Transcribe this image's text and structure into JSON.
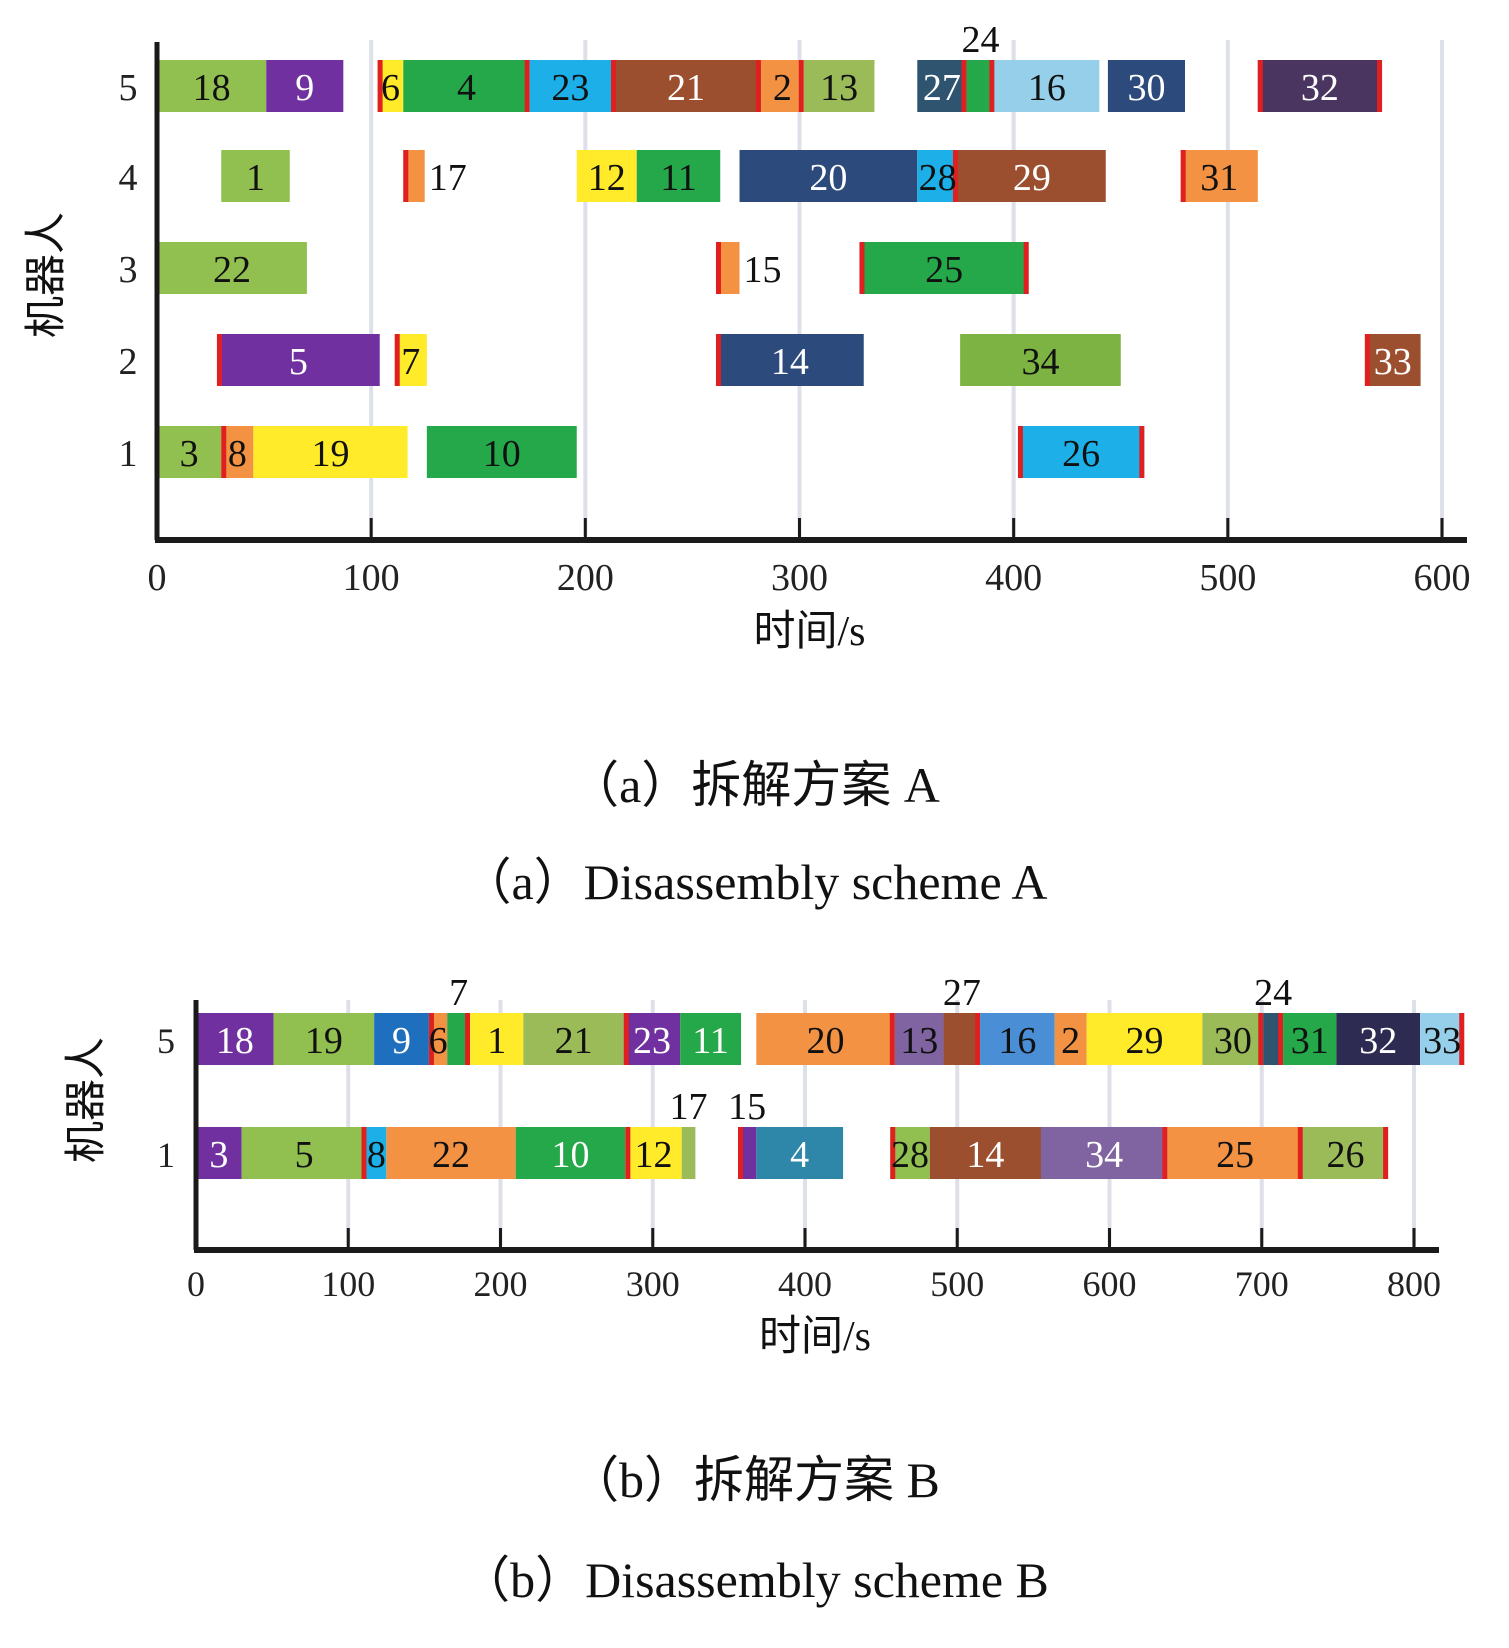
{
  "chart_data": [
    {
      "type": "gantt",
      "id": "a",
      "title_cn": "（a）拆解方案 A",
      "title_en": "（a）Disassembly scheme A",
      "xlabel": "时间/s",
      "ylabel": "机器人",
      "xlim": [
        0,
        600
      ],
      "xticks": [
        "0",
        "100",
        "200",
        "300",
        "400",
        "500",
        "600"
      ],
      "yticks": [
        "1",
        "2",
        "3",
        "4",
        "5"
      ],
      "grid": "vertical",
      "tasks": [
        {
          "robot": 5,
          "label": "18",
          "start": 0,
          "end": 51,
          "color": "#92c050",
          "text": "#111",
          "redL": false,
          "redR": false
        },
        {
          "robot": 5,
          "label": "9",
          "start": 51,
          "end": 87,
          "color": "#7030a0",
          "text": "#fff",
          "redL": false,
          "redR": false
        },
        {
          "robot": 5,
          "label": "6",
          "start": 103,
          "end": 115,
          "color": "#ffeb2a",
          "text": "#111",
          "redL": true,
          "redR": false
        },
        {
          "robot": 5,
          "label": "4",
          "start": 115,
          "end": 174,
          "color": "#25a84a",
          "text": "#111",
          "redL": false,
          "redR": true
        },
        {
          "robot": 5,
          "label": "23",
          "start": 174,
          "end": 212,
          "color": "#1db0e8",
          "text": "#111",
          "redL": false,
          "redR": false
        },
        {
          "robot": 5,
          "label": "21",
          "start": 212,
          "end": 282,
          "color": "#9c4f2e",
          "text": "#fff",
          "redL": true,
          "redR": true
        },
        {
          "robot": 5,
          "label": "2",
          "start": 282,
          "end": 302,
          "color": "#f49244",
          "text": "#111",
          "redL": false,
          "redR": true
        },
        {
          "robot": 5,
          "label": "13",
          "start": 302,
          "end": 335,
          "color": "#9bbb59",
          "text": "#111",
          "redL": false,
          "redR": false
        },
        {
          "robot": 5,
          "label": "27",
          "start": 355,
          "end": 378,
          "color": "#2f5470",
          "text": "#fff",
          "redL": false,
          "redR": true
        },
        {
          "robot": 5,
          "label": "24",
          "start": 378,
          "end": 391,
          "color": "#25a84a",
          "text": "#111",
          "redL": false,
          "redR": true,
          "labelAbove": true
        },
        {
          "robot": 5,
          "label": "16",
          "start": 391,
          "end": 440,
          "color": "#95cfea",
          "text": "#111",
          "redL": false,
          "redR": false
        },
        {
          "robot": 5,
          "label": "30",
          "start": 444,
          "end": 480,
          "color": "#2c4a7c",
          "text": "#fff",
          "redL": false,
          "redR": false
        },
        {
          "robot": 5,
          "label": "32",
          "start": 514,
          "end": 572,
          "color": "#4a3560",
          "text": "#fff",
          "redL": true,
          "redR": true
        },
        {
          "robot": 4,
          "label": "1",
          "start": 30,
          "end": 62,
          "color": "#92c050",
          "text": "#111",
          "redL": false,
          "redR": false
        },
        {
          "robot": 4,
          "label": "17",
          "start": 115,
          "end": 125,
          "color": "#f49244",
          "text": "#111",
          "redL": true,
          "redR": false,
          "labelRight": true
        },
        {
          "robot": 4,
          "label": "12",
          "start": 196,
          "end": 224,
          "color": "#ffeb2a",
          "text": "#111",
          "redL": false,
          "redR": false
        },
        {
          "robot": 4,
          "label": "11",
          "start": 224,
          "end": 263,
          "color": "#25a84a",
          "text": "#111",
          "redL": false,
          "redR": false
        },
        {
          "robot": 4,
          "label": "20",
          "start": 272,
          "end": 355,
          "color": "#2c4a7c",
          "text": "#fff",
          "redL": false,
          "redR": false
        },
        {
          "robot": 4,
          "label": "28",
          "start": 355,
          "end": 374,
          "color": "#1db0e8",
          "text": "#111",
          "redL": false,
          "redR": true
        },
        {
          "robot": 4,
          "label": "29",
          "start": 374,
          "end": 443,
          "color": "#9c4f2e",
          "text": "#fff",
          "redL": false,
          "redR": false
        },
        {
          "robot": 4,
          "label": "31",
          "start": 478,
          "end": 514,
          "color": "#f49244",
          "text": "#111",
          "redL": true,
          "redR": false
        },
        {
          "robot": 3,
          "label": "22",
          "start": 0,
          "end": 70,
          "color": "#92c050",
          "text": "#111",
          "redL": false,
          "redR": false
        },
        {
          "robot": 3,
          "label": "15",
          "start": 261,
          "end": 272,
          "color": "#f49244",
          "text": "#111",
          "redL": true,
          "redR": false,
          "labelRight": true
        },
        {
          "robot": 3,
          "label": "25",
          "start": 328,
          "end": 407,
          "color": "#25a84a",
          "text": "#111",
          "redL": true,
          "redR": true
        },
        {
          "robot": 2,
          "label": "5",
          "start": 28,
          "end": 104,
          "color": "#7030a0",
          "text": "#fff",
          "redL": true,
          "redR": false
        },
        {
          "robot": 2,
          "label": "7",
          "start": 111,
          "end": 126,
          "color": "#ffeb2a",
          "text": "#111",
          "redL": true,
          "redR": false
        },
        {
          "robot": 2,
          "label": "14",
          "start": 261,
          "end": 330,
          "color": "#2c4a7c",
          "text": "#fff",
          "redL": true,
          "redR": false
        },
        {
          "robot": 2,
          "label": "34",
          "start": 375,
          "end": 450,
          "color": "#7cb342",
          "text": "#111",
          "redL": false,
          "redR": false
        },
        {
          "robot": 2,
          "label": "33",
          "start": 564,
          "end": 590,
          "color": "#9c4f2e",
          "text": "#fff",
          "redL": true,
          "redR": false
        },
        {
          "robot": 1,
          "label": "3",
          "start": 0,
          "end": 30,
          "color": "#92c050",
          "text": "#111",
          "redL": false,
          "redR": false
        },
        {
          "robot": 1,
          "label": "8",
          "start": 30,
          "end": 45,
          "color": "#f49244",
          "text": "#111",
          "redL": true,
          "redR": false
        },
        {
          "robot": 1,
          "label": "19",
          "start": 45,
          "end": 117,
          "color": "#ffeb2a",
          "text": "#111",
          "redL": false,
          "redR": false
        },
        {
          "robot": 1,
          "label": "10",
          "start": 126,
          "end": 196,
          "color": "#25a84a",
          "text": "#111",
          "redL": false,
          "redR": false
        },
        {
          "robot": 1,
          "label": "26",
          "start": 402,
          "end": 461,
          "color": "#1db0e8",
          "text": "#111",
          "redL": true,
          "redR": true
        }
      ]
    },
    {
      "type": "gantt",
      "id": "b",
      "title_cn": "（b）拆解方案 B",
      "title_en": "（b）Disassembly scheme B",
      "xlabel": "时间/s",
      "ylabel": "机器人",
      "xlim": [
        0,
        800
      ],
      "xticks": [
        "0",
        "100",
        "200",
        "300",
        "400",
        "500",
        "600",
        "700",
        "800"
      ],
      "yticks": [
        "1",
        "5"
      ],
      "grid": "vertical",
      "tasks": [
        {
          "robot": 5,
          "label": "18",
          "start": 0,
          "end": 51,
          "color": "#7030a0",
          "text": "#fff",
          "redL": false,
          "redR": false
        },
        {
          "robot": 5,
          "label": "19",
          "start": 51,
          "end": 117,
          "color": "#92c050",
          "text": "#111",
          "redL": false,
          "redR": false
        },
        {
          "robot": 5,
          "label": "9",
          "start": 117,
          "end": 153,
          "color": "#1f6fbf",
          "text": "#fff",
          "redL": false,
          "redR": false
        },
        {
          "robot": 5,
          "label": "6",
          "start": 153,
          "end": 165,
          "color": "#f49244",
          "text": "#111",
          "redL": true,
          "redR": false
        },
        {
          "robot": 5,
          "label": "7",
          "start": 165,
          "end": 180,
          "color": "#25a84a",
          "text": "#111",
          "redL": false,
          "redR": true,
          "labelAbove": true
        },
        {
          "robot": 5,
          "label": "1",
          "start": 180,
          "end": 215,
          "color": "#ffeb2a",
          "text": "#111",
          "redL": false,
          "redR": false
        },
        {
          "robot": 5,
          "label": "21",
          "start": 215,
          "end": 281,
          "color": "#9bbb59",
          "text": "#111",
          "redL": false,
          "redR": false
        },
        {
          "robot": 5,
          "label": "23",
          "start": 281,
          "end": 318,
          "color": "#7030a0",
          "text": "#fff",
          "redL": true,
          "redR": false
        },
        {
          "robot": 5,
          "label": "11",
          "start": 318,
          "end": 358,
          "color": "#25a84a",
          "text": "#fff",
          "redL": false,
          "redR": false
        },
        {
          "robot": 5,
          "label": "20",
          "start": 368,
          "end": 459,
          "color": "#f49244",
          "text": "#111",
          "redL": false,
          "redR": true
        },
        {
          "robot": 5,
          "label": "13",
          "start": 459,
          "end": 491,
          "color": "#8064a2",
          "text": "#111",
          "redL": false,
          "redR": false
        },
        {
          "robot": 5,
          "label": "27",
          "start": 491,
          "end": 515,
          "color": "#9c4f2e",
          "text": "#111",
          "redL": false,
          "redR": true,
          "labelAbove": true
        },
        {
          "robot": 5,
          "label": "16",
          "start": 515,
          "end": 564,
          "color": "#4a8fd6",
          "text": "#111",
          "redL": false,
          "redR": false
        },
        {
          "robot": 5,
          "label": "2",
          "start": 564,
          "end": 585,
          "color": "#f49244",
          "text": "#111",
          "redL": false,
          "redR": false
        },
        {
          "robot": 5,
          "label": "29",
          "start": 585,
          "end": 661,
          "color": "#ffeb2a",
          "text": "#111",
          "redL": false,
          "redR": false
        },
        {
          "robot": 5,
          "label": "30",
          "start": 661,
          "end": 701,
          "color": "#9bbb59",
          "text": "#111",
          "redL": false,
          "redR": true
        },
        {
          "robot": 5,
          "label": "24",
          "start": 701,
          "end": 714,
          "color": "#2f5470",
          "text": "#fff",
          "redL": false,
          "redR": true,
          "labelAbove": true
        },
        {
          "robot": 5,
          "label": "31",
          "start": 714,
          "end": 749,
          "color": "#25a84a",
          "text": "#111",
          "redL": false,
          "redR": false
        },
        {
          "robot": 5,
          "label": "32",
          "start": 749,
          "end": 804,
          "color": "#2e2b52",
          "text": "#fff",
          "redL": false,
          "redR": false
        },
        {
          "robot": 5,
          "label": "33",
          "start": 804,
          "end": 833,
          "color": "#95cfea",
          "text": "#111",
          "redL": false,
          "redR": true
        },
        {
          "robot": 1,
          "label": "3",
          "start": 0,
          "end": 30,
          "color": "#7030a0",
          "text": "#fff",
          "redL": false,
          "redR": false
        },
        {
          "robot": 1,
          "label": "5",
          "start": 30,
          "end": 112,
          "color": "#92c050",
          "text": "#111",
          "redL": false,
          "redR": true
        },
        {
          "robot": 1,
          "label": "8",
          "start": 112,
          "end": 125,
          "color": "#1db0e8",
          "text": "#111",
          "redL": false,
          "redR": false
        },
        {
          "robot": 1,
          "label": "22",
          "start": 125,
          "end": 210,
          "color": "#f49244",
          "text": "#111",
          "redL": false,
          "redR": false
        },
        {
          "robot": 1,
          "label": "10",
          "start": 210,
          "end": 282,
          "color": "#25a84a",
          "text": "#fff",
          "redL": false,
          "redR": false
        },
        {
          "robot": 1,
          "label": "12",
          "start": 282,
          "end": 319,
          "color": "#ffeb2a",
          "text": "#111",
          "redL": true,
          "redR": false
        },
        {
          "robot": 1,
          "label": "17",
          "start": 319,
          "end": 328,
          "color": "#9bbb59",
          "text": "#111",
          "redL": false,
          "redR": false,
          "labelAbove": true
        },
        {
          "robot": 1,
          "label": "15",
          "start": 356,
          "end": 368,
          "color": "#7030a0",
          "text": "#fff",
          "redL": true,
          "redR": false,
          "labelAbove": true
        },
        {
          "robot": 1,
          "label": "4",
          "start": 368,
          "end": 425,
          "color": "#2e86a8",
          "text": "#fff",
          "redL": false,
          "redR": false
        },
        {
          "robot": 1,
          "label": "28",
          "start": 456,
          "end": 482,
          "color": "#92c050",
          "text": "#111",
          "redL": true,
          "redR": false
        },
        {
          "robot": 1,
          "label": "14",
          "start": 482,
          "end": 555,
          "color": "#9c4f2e",
          "text": "#fff",
          "redL": false,
          "redR": false
        },
        {
          "robot": 1,
          "label": "34",
          "start": 555,
          "end": 638,
          "color": "#8064a2",
          "text": "#fff",
          "redL": false,
          "redR": true
        },
        {
          "robot": 1,
          "label": "25",
          "start": 638,
          "end": 727,
          "color": "#f49244",
          "text": "#111",
          "redL": false,
          "redR": true
        },
        {
          "robot": 1,
          "label": "26",
          "start": 727,
          "end": 783,
          "color": "#9bbb59",
          "text": "#111",
          "redL": false,
          "redR": true
        }
      ]
    }
  ],
  "captions": {
    "a_cn": "（a）拆解方案 A",
    "a_en": "（a）Disassembly scheme A",
    "b_cn": "（b）拆解方案 B",
    "b_en": "（b）Disassembly scheme B"
  },
  "colors": {
    "marker": "#e02020",
    "grid": "#dde0e8",
    "axis": "#1a1a1a"
  }
}
